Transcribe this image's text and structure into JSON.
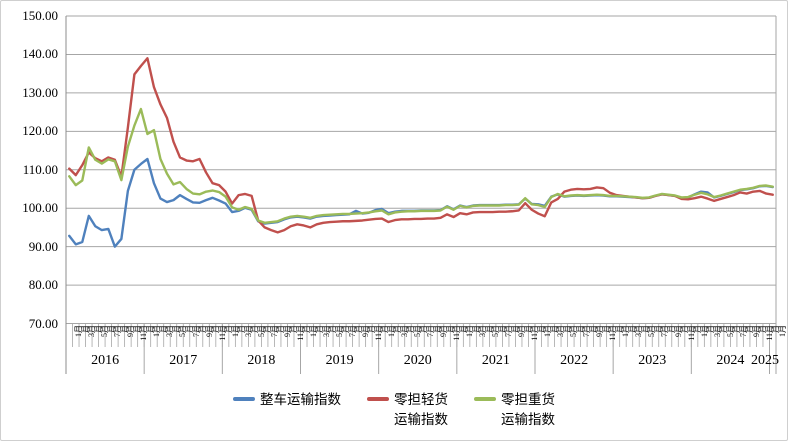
{
  "chart_data": {
    "type": "line",
    "title": "",
    "grid": true,
    "legend_position": "bottom",
    "y_axis": {
      "min": 70,
      "max": 150,
      "step": 10,
      "tick_labels": [
        "150.00",
        "140.00",
        "130.00",
        "120.00",
        "110.00",
        "100.00",
        "90.00",
        "80.00",
        "70.00"
      ]
    },
    "x_axis": {
      "month_suffix": "月",
      "numbered_months": [
        1,
        3,
        5,
        7,
        9,
        11
      ],
      "years": [
        {
          "label": "2016",
          "months": 12
        },
        {
          "label": "2017",
          "months": 12
        },
        {
          "label": "2018",
          "months": 12
        },
        {
          "label": "2019",
          "months": 12
        },
        {
          "label": "2020",
          "months": 12
        },
        {
          "label": "2021",
          "months": 12
        },
        {
          "label": "2022",
          "months": 12
        },
        {
          "label": "2023",
          "months": 12
        },
        {
          "label": "2024",
          "months": 12
        },
        {
          "label": "2025",
          "months": 1
        }
      ]
    },
    "series": [
      {
        "name": "整车运输指数",
        "color": "#4F81BD",
        "legend_lines": [
          "整车运输指数"
        ],
        "values": [
          92.8,
          90.6,
          91.2,
          98.0,
          95.3,
          94.3,
          94.6,
          90.0,
          92.0,
          104.5,
          110.0,
          111.5,
          112.8,
          106.5,
          102.5,
          101.6,
          102.1,
          103.4,
          102.4,
          101.5,
          101.4,
          102.1,
          102.7,
          102.0,
          101.2,
          99.0,
          99.3,
          100.1,
          99.6,
          96.6,
          96.0,
          96.2,
          96.4,
          97.1,
          97.6,
          97.8,
          97.6,
          97.3,
          97.8,
          98.0,
          98.1,
          98.2,
          98.3,
          98.4,
          99.3,
          98.6,
          98.8,
          99.5,
          99.8,
          98.7,
          99.1,
          99.3,
          99.3,
          99.3,
          99.4,
          99.4,
          99.4,
          99.5,
          100.5,
          99.7,
          100.7,
          100.3,
          100.7,
          100.8,
          100.8,
          100.8,
          100.8,
          100.9,
          100.9,
          101.0,
          102.5,
          101.1,
          101.0,
          100.6,
          103.0,
          103.6,
          103.0,
          103.2,
          103.3,
          103.2,
          103.3,
          103.4,
          103.3,
          103.1,
          103.1,
          103.0,
          102.9,
          102.8,
          102.6,
          102.7,
          103.2,
          103.6,
          103.4,
          103.2,
          102.7,
          102.8,
          103.6,
          104.3,
          104.1,
          102.8,
          103.2,
          103.7,
          104.2,
          104.7,
          104.9,
          105.2,
          105.7,
          105.8,
          105.5
        ]
      },
      {
        "name": "零担轻货运输指数",
        "color": "#C0504D",
        "legend_lines": [
          "零担轻货",
          "运输指数"
        ],
        "values": [
          110.3,
          108.6,
          111.2,
          114.5,
          113.0,
          112.2,
          113.2,
          112.6,
          108.2,
          121.0,
          134.8,
          137.0,
          139.0,
          131.5,
          127.0,
          123.5,
          117.3,
          113.2,
          112.4,
          112.2,
          112.8,
          109.3,
          106.5,
          106.0,
          104.3,
          101.2,
          103.4,
          103.7,
          103.2,
          96.8,
          95.0,
          94.3,
          93.7,
          94.3,
          95.3,
          95.8,
          95.5,
          95.0,
          95.8,
          96.2,
          96.4,
          96.5,
          96.6,
          96.6,
          96.7,
          96.8,
          97.0,
          97.2,
          97.3,
          96.4,
          96.9,
          97.1,
          97.1,
          97.2,
          97.2,
          97.3,
          97.3,
          97.5,
          98.4,
          97.7,
          98.7,
          98.4,
          98.9,
          99.0,
          99.0,
          99.0,
          99.1,
          99.1,
          99.2,
          99.4,
          101.3,
          99.6,
          98.6,
          97.9,
          101.5,
          102.4,
          104.3,
          104.8,
          105.0,
          104.9,
          105.0,
          105.4,
          105.2,
          104.0,
          103.4,
          103.2,
          103.0,
          102.8,
          102.6,
          102.7,
          103.2,
          103.6,
          103.4,
          103.2,
          102.4,
          102.3,
          102.6,
          103.0,
          102.5,
          101.9,
          102.4,
          102.9,
          103.4,
          104.1,
          103.8,
          104.3,
          104.5,
          103.8,
          103.5
        ]
      },
      {
        "name": "零担重货运输指数",
        "color": "#9BBB59",
        "legend_lines": [
          "零担重货",
          "运输指数"
        ],
        "values": [
          108.3,
          106.0,
          107.2,
          115.8,
          112.6,
          111.6,
          112.7,
          112.2,
          107.3,
          116.0,
          121.5,
          125.8,
          119.3,
          120.3,
          112.8,
          109.0,
          106.2,
          106.8,
          105.0,
          103.8,
          103.6,
          104.3,
          104.6,
          104.2,
          103.0,
          100.2,
          99.6,
          100.3,
          99.8,
          96.8,
          96.2,
          96.4,
          96.6,
          97.3,
          97.8,
          98.0,
          97.8,
          97.5,
          98.0,
          98.2,
          98.3,
          98.4,
          98.5,
          98.5,
          98.6,
          98.7,
          98.9,
          99.2,
          99.4,
          98.4,
          98.9,
          99.1,
          99.2,
          99.2,
          99.3,
          99.3,
          99.3,
          99.4,
          100.4,
          99.6,
          100.6,
          100.2,
          100.6,
          100.7,
          100.7,
          100.7,
          100.7,
          100.8,
          100.8,
          100.9,
          102.6,
          101.0,
          100.8,
          100.3,
          102.9,
          103.7,
          103.1,
          103.3,
          103.4,
          103.3,
          103.4,
          103.5,
          103.4,
          103.2,
          103.2,
          103.1,
          103.0,
          102.9,
          102.7,
          102.8,
          103.3,
          103.7,
          103.5,
          103.3,
          102.8,
          102.9,
          103.5,
          104.0,
          103.6,
          102.9,
          103.3,
          103.8,
          104.3,
          104.8,
          105.0,
          105.3,
          105.8,
          105.9,
          105.6
        ]
      }
    ],
    "colors": {
      "gridline": "#A6A6A6",
      "axis": "#8C8C8C",
      "text": "#000000",
      "background": "#FFFFFF"
    }
  }
}
